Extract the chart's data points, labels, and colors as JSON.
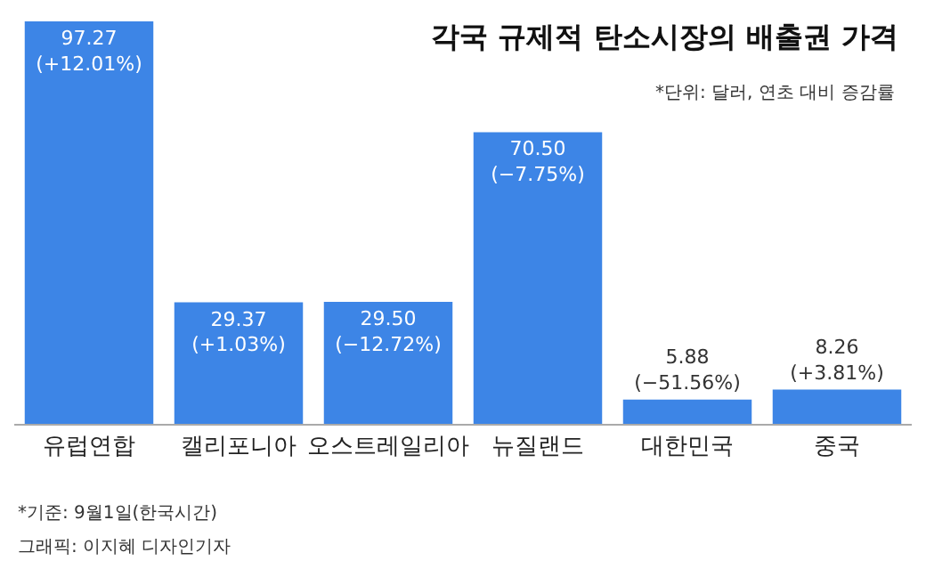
{
  "chart_data": {
    "type": "bar",
    "title": "각국 규제적 탄소시장의 배출권 가격",
    "subtitle": "*단위: 달러, 연초 대비 증감률",
    "categories": [
      "유럽연합",
      "캘리포니아",
      "오스트레일리아",
      "뉴질랜드",
      "대한민국",
      "중국"
    ],
    "values": [
      97.27,
      29.37,
      29.5,
      70.5,
      5.88,
      8.26
    ],
    "value_labels": [
      "97.27\n(+12.01%)",
      "29.37\n(+1.03%)",
      "29.50\n(−12.72%)",
      "70.50\n(−7.75%)",
      "5.88\n(−51.56%)",
      "8.26\n(+3.81%)"
    ],
    "color": "#3d85e6",
    "annotations": [
      "*기준: 9월1일(한국시간)",
      "그래픽: 이지혜 디자인기자"
    ]
  }
}
